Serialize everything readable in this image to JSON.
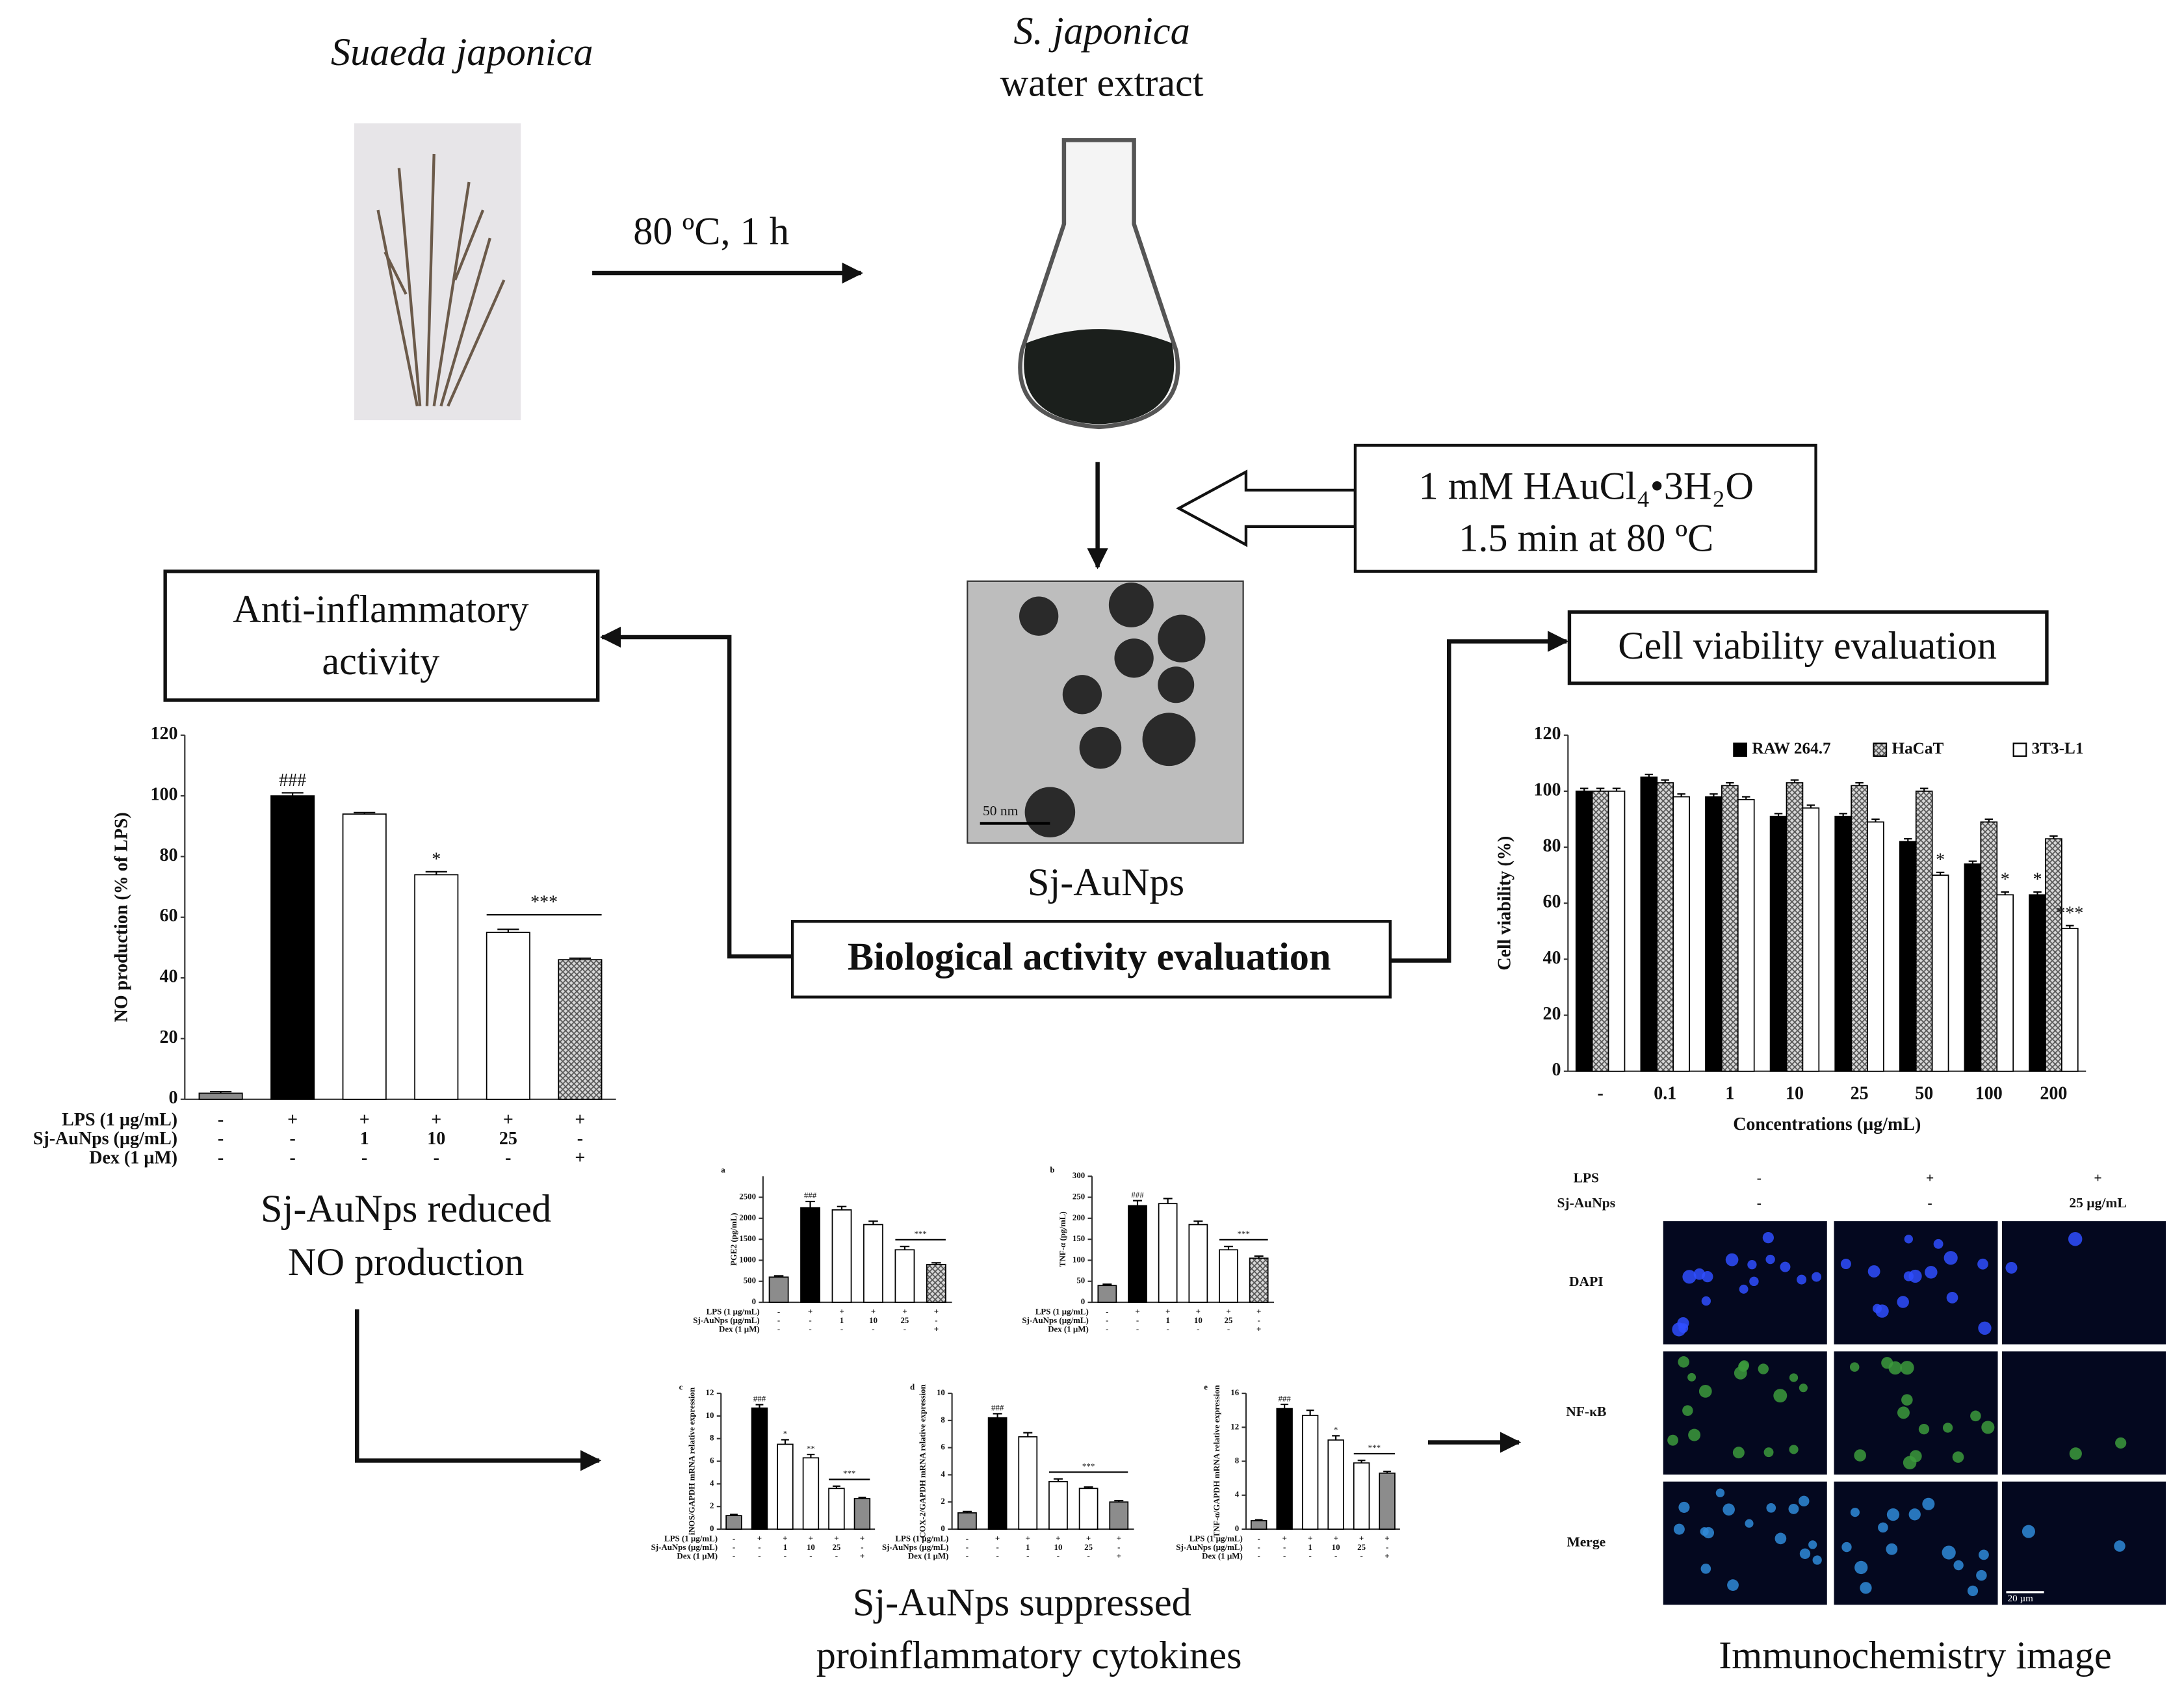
{
  "plant_label": "Suaeda japonica",
  "extract_label": [
    "S. japonica",
    "water extract"
  ],
  "heating_step": "80 ºC, 1 h",
  "reagent": [
    "1 mM HAuCl₄•3H₂O",
    "1.5 min at 80 ºC"
  ],
  "nanoparticle": {
    "label": "Sj-AuNps",
    "scale_bar": "50 nm"
  },
  "evaluation": "Biological activity evaluation",
  "anti_inflammatory": [
    "Anti-inflammatory",
    "activity"
  ],
  "cell_viability_title": "Cell viability evaluation",
  "no_caption": [
    "Sj-AuNps reduced",
    "NO production"
  ],
  "cytokine_caption": [
    "Sj-AuNps suppressed",
    "proinflammatory cytokines"
  ],
  "no_chart": {
    "type": "bar",
    "ylabel": "NO production  (% of LPS)",
    "ylim": [
      0,
      120
    ],
    "yticks": [
      0,
      20,
      40,
      60,
      80,
      100,
      120
    ],
    "values": [
      2,
      100,
      94,
      74,
      55,
      46
    ],
    "errors": [
      0.5,
      1,
      0.5,
      1,
      1,
      0.5
    ],
    "colors": [
      "#8c8c8c",
      "#000000",
      "#ffffff",
      "#ffffff",
      "#ffffff",
      "hatch"
    ],
    "annotations": [
      null,
      "###",
      null,
      "*",
      "***",
      null
    ],
    "treatments": [
      {
        "label": "LPS (1 µg/mL)",
        "values": [
          "-",
          "+",
          "+",
          "+",
          "+",
          "+"
        ]
      },
      {
        "label": "Sj-AuNps (µg/mL)",
        "values": [
          "-",
          "-",
          "1",
          "10",
          "25",
          "-"
        ]
      },
      {
        "label": "Dex (1 µM)",
        "values": [
          "-",
          "-",
          "-",
          "-",
          "-",
          "+"
        ]
      }
    ]
  },
  "viability_chart": {
    "type": "bar",
    "ylabel": "Cell viability (%)",
    "xlabel": "Concentrations (µg/mL)",
    "ylim": [
      0,
      120
    ],
    "yticks": [
      0,
      20,
      40,
      60,
      80,
      100,
      120
    ],
    "categories": [
      "-",
      "0.1",
      "1",
      "10",
      "25",
      "50",
      "100",
      "200"
    ],
    "series": [
      {
        "name": "RAW 264.7",
        "color": "#000000",
        "values": [
          100,
          105,
          98,
          91,
          91,
          82,
          74,
          63
        ],
        "errors": [
          1,
          1,
          1,
          1,
          1,
          1,
          1,
          1
        ],
        "annotations": [
          null,
          null,
          null,
          null,
          null,
          null,
          null,
          "*"
        ]
      },
      {
        "name": "HaCaT",
        "color": "hatch",
        "values": [
          100,
          103,
          102,
          103,
          102,
          100,
          89,
          83
        ],
        "errors": [
          1,
          1,
          1,
          1,
          1,
          1,
          1,
          1
        ],
        "annotations": [
          null,
          null,
          null,
          null,
          null,
          null,
          null,
          null
        ]
      },
      {
        "name": "3T3-L1",
        "color": "#ffffff",
        "values": [
          100,
          98,
          97,
          94,
          89,
          70,
          63,
          51
        ],
        "errors": [
          1,
          1,
          1,
          1,
          1,
          1,
          1,
          1
        ],
        "annotations": [
          null,
          null,
          null,
          null,
          null,
          "*",
          "*",
          "***"
        ]
      }
    ]
  },
  "cytokine_charts": [
    {
      "type": "bar",
      "panel": "a",
      "ylabel": "PGE2 (pg/mL)",
      "ylim": [
        0,
        3000
      ],
      "yticks": [
        0,
        500,
        1000,
        1500,
        2000,
        2500
      ],
      "values": [
        600,
        2250,
        2200,
        1850,
        1250,
        900
      ],
      "errors": [
        30,
        150,
        80,
        80,
        80,
        40
      ],
      "colors": [
        "#8c8c8c",
        "#000000",
        "#ffffff",
        "#ffffff",
        "#ffffff",
        "hatch"
      ],
      "annotations": [
        null,
        "###",
        null,
        null,
        "***",
        null
      ],
      "treatments": [
        {
          "label": "LPS (1 µg/mL)",
          "values": [
            "-",
            "+",
            "+",
            "+",
            "+",
            "+"
          ]
        },
        {
          "label": "Sj-AuNps (µg/mL)",
          "values": [
            "-",
            "-",
            "1",
            "10",
            "25",
            "-"
          ]
        },
        {
          "label": "Dex (1 µM)",
          "values": [
            "-",
            "-",
            "-",
            "-",
            "-",
            "+"
          ]
        }
      ]
    },
    {
      "type": "bar",
      "panel": "b",
      "ylabel": "TNF-α (pg/mL)",
      "ylim": [
        0,
        300
      ],
      "yticks": [
        0,
        50,
        100,
        150,
        200,
        250,
        300
      ],
      "values": [
        40,
        230,
        235,
        185,
        125,
        105
      ],
      "errors": [
        3,
        12,
        12,
        8,
        8,
        5
      ],
      "colors": [
        "#8c8c8c",
        "#000000",
        "#ffffff",
        "#ffffff",
        "#ffffff",
        "hatch"
      ],
      "annotations": [
        null,
        "###",
        null,
        null,
        "***",
        null
      ],
      "treatments": [
        {
          "label": "LPS (1 µg/mL)",
          "values": [
            "-",
            "+",
            "+",
            "+",
            "+",
            "+"
          ]
        },
        {
          "label": "Sj-AuNps (µg/mL)",
          "values": [
            "-",
            "-",
            "1",
            "10",
            "25",
            "-"
          ]
        },
        {
          "label": "Dex (1 µM)",
          "values": [
            "-",
            "-",
            "-",
            "-",
            "-",
            "+"
          ]
        }
      ]
    },
    {
      "type": "bar",
      "panel": "c",
      "ylabel": "iNOS/GAPDH mRNA relative expression",
      "ylim": [
        0,
        12
      ],
      "yticks": [
        0,
        2,
        4,
        6,
        8,
        10,
        12
      ],
      "values": [
        1.2,
        10.7,
        7.5,
        6.3,
        3.6,
        2.7
      ],
      "errors": [
        0.1,
        0.3,
        0.4,
        0.3,
        0.2,
        0.1
      ],
      "colors": [
        "#8c8c8c",
        "#000000",
        "#ffffff",
        "#ffffff",
        "#ffffff",
        "#8c8c8c"
      ],
      "annotations": [
        null,
        "###",
        "*",
        "**",
        "***",
        null
      ],
      "treatments": [
        {
          "label": "LPS (1 µg/mL)",
          "values": [
            "-",
            "+",
            "+",
            "+",
            "+",
            "+"
          ]
        },
        {
          "label": "Sj-AuNps (µg/mL)",
          "values": [
            "-",
            "-",
            "1",
            "10",
            "25",
            "-"
          ]
        },
        {
          "label": "Dex (1 µM)",
          "values": [
            "-",
            "-",
            "-",
            "-",
            "-",
            "+"
          ]
        }
      ]
    },
    {
      "type": "bar",
      "panel": "d",
      "ylabel": "COX-2/GAPDH mRNA relative expression",
      "ylim": [
        0,
        10
      ],
      "yticks": [
        0,
        2,
        4,
        6,
        8,
        10
      ],
      "values": [
        1.2,
        8.2,
        6.8,
        3.5,
        3.0,
        2.0
      ],
      "errors": [
        0.1,
        0.3,
        0.3,
        0.2,
        0.1,
        0.1
      ],
      "colors": [
        "#8c8c8c",
        "#000000",
        "#ffffff",
        "#ffffff",
        "#ffffff",
        "#8c8c8c"
      ],
      "annotations": [
        null,
        "###",
        null,
        "***",
        null,
        null
      ],
      "treatments": [
        {
          "label": "LPS (1 µg/mL)",
          "values": [
            "-",
            "+",
            "+",
            "+",
            "+",
            "+"
          ]
        },
        {
          "label": "Sj-AuNps (µg/mL)",
          "values": [
            "-",
            "-",
            "1",
            "10",
            "25",
            "-"
          ]
        },
        {
          "label": "Dex (1 µM)",
          "values": [
            "-",
            "-",
            "-",
            "-",
            "-",
            "+"
          ]
        }
      ]
    },
    {
      "type": "bar",
      "panel": "e",
      "ylabel": "TNF-α/GAPDH mRNA relative expression",
      "ylim": [
        0,
        16
      ],
      "yticks": [
        0,
        4,
        8,
        12,
        16
      ],
      "values": [
        1,
        14.2,
        13.4,
        10.5,
        7.8,
        6.6
      ],
      "errors": [
        0.1,
        0.5,
        0.6,
        0.5,
        0.3,
        0.2
      ],
      "colors": [
        "#8c8c8c",
        "#000000",
        "#ffffff",
        "#ffffff",
        "#ffffff",
        "#8c8c8c"
      ],
      "annotations": [
        null,
        "###",
        null,
        "*",
        "***",
        null
      ],
      "treatments": [
        {
          "label": "LPS (1 µg/mL)",
          "values": [
            "-",
            "+",
            "+",
            "+",
            "+",
            "+"
          ]
        },
        {
          "label": "Sj-AuNps (µg/mL)",
          "values": [
            "-",
            "-",
            "1",
            "10",
            "25",
            "-"
          ]
        },
        {
          "label": "Dex (1 µM)",
          "values": [
            "-",
            "-",
            "-",
            "-",
            "-",
            "+"
          ]
        }
      ]
    }
  ],
  "immunostaining": {
    "treatments": [
      {
        "label": "LPS",
        "values": [
          "-",
          "+",
          "+"
        ]
      },
      {
        "label": "Sj-AuNps",
        "values": [
          "-",
          "-",
          "25 µg/mL"
        ]
      }
    ],
    "rows": [
      "DAPI",
      "NF-κB",
      "Merge"
    ],
    "scale_bar": "20 µm",
    "caption": "Immunochemistry image"
  }
}
